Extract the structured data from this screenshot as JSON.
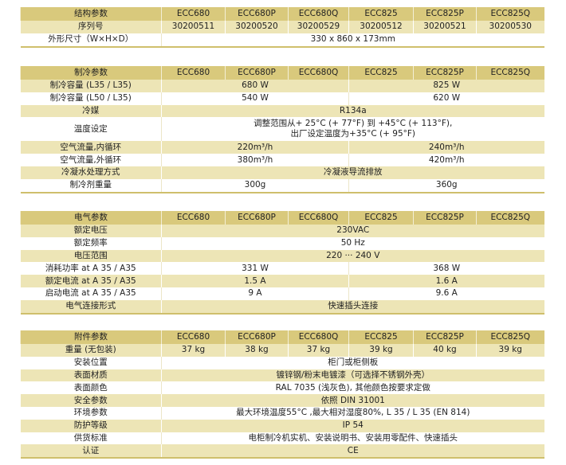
{
  "colors": {
    "header": "#d9c97c",
    "shaded_row": "#ede5b6",
    "rule": "#cfbf6c"
  },
  "sections": [
    {
      "header": [
        "结构参数",
        "ECC680",
        "ECC680P",
        "ECC680Q",
        "ECC825",
        "ECC825P",
        "ECC825Q"
      ],
      "rows": [
        {
          "label": "序列号",
          "shade": true,
          "cells": [
            {
              "text": "30200511",
              "span": 1
            },
            {
              "text": "30200520",
              "span": 1
            },
            {
              "text": "30200529",
              "span": 1
            },
            {
              "text": "30200512",
              "span": 1
            },
            {
              "text": "30200521",
              "span": 1
            },
            {
              "text": "30200530",
              "span": 1
            }
          ]
        },
        {
          "label": "外形尺寸（W×H×D）",
          "shade": false,
          "cells": [
            {
              "text": "330 x 860 x 173mm",
              "span": 6
            }
          ]
        }
      ]
    },
    {
      "header": [
        "制冷参数",
        "ECC680",
        "ECC680P",
        "ECC680Q",
        "ECC825",
        "ECC825P",
        "ECC825Q"
      ],
      "rows": [
        {
          "label": "制冷容量 (L35 / L35)",
          "shade": true,
          "cells": [
            {
              "text": "680 W",
              "span": 3
            },
            {
              "text": "825 W",
              "span": 3
            }
          ]
        },
        {
          "label": "制冷容量 (L50 / L35)",
          "shade": false,
          "cells": [
            {
              "text": "540 W",
              "span": 3
            },
            {
              "text": "620 W",
              "span": 3
            }
          ]
        },
        {
          "label": "冷媒",
          "shade": true,
          "cells": [
            {
              "text": "R134a",
              "span": 6
            }
          ]
        },
        {
          "label": "温度设定",
          "shade": false,
          "tall": true,
          "cells": [
            {
              "text": "调整范围从+ 25°C (+ 77°F) 到 +45°C (+ 113°F),",
              "text2": "出厂设定温度为+35°C (+ 95°F)",
              "span": 6
            }
          ]
        },
        {
          "label": "空气流量,内循环",
          "shade": true,
          "cells": [
            {
              "text": "220m³/h",
              "span": 3
            },
            {
              "text": "240m³/h",
              "span": 3
            }
          ]
        },
        {
          "label": "空气流量,外循环",
          "shade": false,
          "cells": [
            {
              "text": "380m³/h",
              "span": 3
            },
            {
              "text": "420m³/h",
              "span": 3
            }
          ]
        },
        {
          "label": "冷凝水处理方式",
          "shade": true,
          "cells": [
            {
              "text": "冷凝液导流排放",
              "span": 6
            }
          ]
        },
        {
          "label": "制冷剂重量",
          "shade": false,
          "cells": [
            {
              "text": "300g",
              "span": 3
            },
            {
              "text": "360g",
              "span": 3
            }
          ]
        }
      ]
    },
    {
      "header": [
        "电气参数",
        "ECC680",
        "ECC680P",
        "ECC680Q",
        "ECC825",
        "ECC825P",
        "ECC825Q"
      ],
      "rows": [
        {
          "label": "额定电压",
          "shade": true,
          "cells": [
            {
              "text": "230VAC",
              "span": 6
            }
          ]
        },
        {
          "label": "额定频率",
          "shade": false,
          "cells": [
            {
              "text": "50 Hz",
              "span": 6
            }
          ]
        },
        {
          "label": "电压范围",
          "shade": true,
          "cells": [
            {
              "text": "220 ··· 240 V",
              "span": 6
            }
          ]
        },
        {
          "label": "消耗功率 at A 35 / A35",
          "shade": false,
          "cells": [
            {
              "text": "331 W",
              "span": 3
            },
            {
              "text": "368 W",
              "span": 3
            }
          ]
        },
        {
          "label": "额定电流 at A 35 / A35",
          "shade": true,
          "cells": [
            {
              "text": "1.5 A",
              "span": 3
            },
            {
              "text": "1.6 A",
              "span": 3
            }
          ]
        },
        {
          "label": "启动电流 at A 35 / A35",
          "shade": false,
          "cells": [
            {
              "text": "9 A",
              "span": 3
            },
            {
              "text": "9.6 A",
              "span": 3
            }
          ]
        },
        {
          "label": "电气连接形式",
          "shade": true,
          "cells": [
            {
              "text": "快速插头连接",
              "span": 6
            }
          ]
        }
      ]
    },
    {
      "header": [
        "附件参数",
        "ECC680",
        "ECC680P",
        "ECC680Q",
        "ECC825",
        "ECC825P",
        "ECC825Q"
      ],
      "rows": [
        {
          "label": "重量 (无包装)",
          "shade": true,
          "cells": [
            {
              "text": "37 kg",
              "span": 1
            },
            {
              "text": "38 kg",
              "span": 1
            },
            {
              "text": "37 kg",
              "span": 1
            },
            {
              "text": "39 kg",
              "span": 1
            },
            {
              "text": "40 kg",
              "span": 1
            },
            {
              "text": "39 kg",
              "span": 1
            }
          ]
        },
        {
          "label": "安装位置",
          "shade": false,
          "cells": [
            {
              "text": "柜门或柜侧板",
              "span": 6
            }
          ]
        },
        {
          "label": "表面材质",
          "shade": true,
          "cells": [
            {
              "text": "镀锌钢/粉末电镀漆（可选择不锈钢外壳）",
              "span": 6
            }
          ]
        },
        {
          "label": "表面颜色",
          "shade": false,
          "cells": [
            {
              "text": "RAL 7035 (浅灰色), 其他颜色按要求定做",
              "span": 6
            }
          ]
        },
        {
          "label": "安全参数",
          "shade": true,
          "cells": [
            {
              "text": "依照 DIN 31001",
              "span": 6
            }
          ]
        },
        {
          "label": "环境参数",
          "shade": false,
          "cells": [
            {
              "text": "最大环境温度55°C ,最大相对湿度80%, L 35 / L 35 (EN 814)",
              "span": 6
            }
          ]
        },
        {
          "label": "防护等级",
          "shade": true,
          "cells": [
            {
              "text": "IP 54",
              "span": 6
            }
          ]
        },
        {
          "label": "供货标准",
          "shade": false,
          "cells": [
            {
              "text": "电柜制冷机实机、安装说明书、安装用零配件、快速插头",
              "span": 6
            }
          ]
        },
        {
          "label": "认证",
          "shade": true,
          "cells": [
            {
              "text": "CE",
              "span": 6
            }
          ]
        }
      ]
    }
  ]
}
